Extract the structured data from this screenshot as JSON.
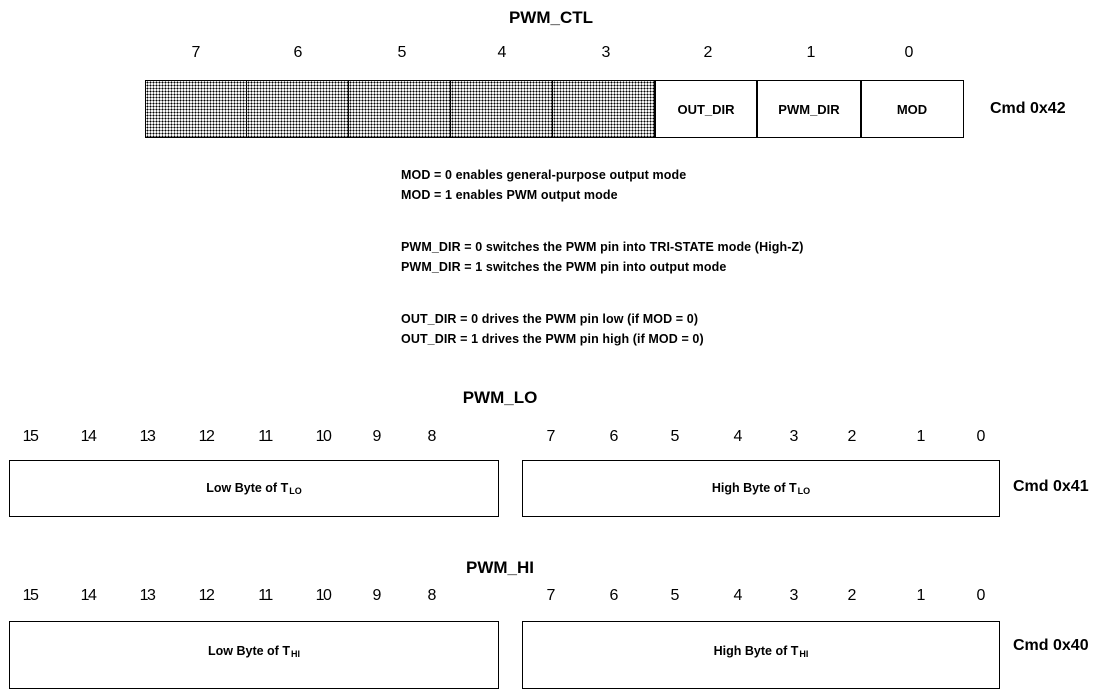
{
  "pwm_ctl": {
    "title": "PWM_CTL",
    "bit_numbers": [
      "7",
      "6",
      "5",
      "4",
      "3",
      "2",
      "1",
      "0"
    ],
    "fields": [
      {
        "label": "",
        "reserved": true
      },
      {
        "label": "",
        "reserved": true
      },
      {
        "label": "",
        "reserved": true
      },
      {
        "label": "",
        "reserved": true
      },
      {
        "label": "",
        "reserved": true
      },
      {
        "label": "OUT_DIR",
        "reserved": false
      },
      {
        "label": "PWM_DIR",
        "reserved": false
      },
      {
        "label": "MOD",
        "reserved": false
      }
    ],
    "cmd": "Cmd 0x42"
  },
  "notes": {
    "mod_0": "MOD = 0 enables general-purpose output mode",
    "mod_1": "MOD = 1 enables PWM output mode",
    "pwm_dir_0": "PWM_DIR = 0 switches the PWM pin into TRI-STATE mode (High-Z)",
    "pwm_dir_1": "PWM_DIR = 1 switches the PWM pin into output mode",
    "out_dir_0": "OUT_DIR = 0 drives the PWM pin low (if MOD = 0)",
    "out_dir_1": "OUT_DIR = 1 drives the PWM pin high (if MOD = 0)"
  },
  "pwm_lo": {
    "title": "PWM_LO",
    "bit_numbers": [
      "15",
      "14",
      "13",
      "12",
      "11",
      "10",
      "9",
      "8",
      "7",
      "6",
      "5",
      "4",
      "3",
      "2",
      "1",
      "0"
    ],
    "low_byte": {
      "label": "Low Byte of T",
      "sub": "LO"
    },
    "high_byte": {
      "label": "High Byte of T",
      "sub": "LO"
    },
    "cmd": "Cmd 0x41"
  },
  "pwm_hi": {
    "title": "PWM_HI",
    "bit_numbers": [
      "15",
      "14",
      "13",
      "12",
      "11",
      "10",
      "9",
      "8",
      "7",
      "6",
      "5",
      "4",
      "3",
      "2",
      "1",
      "0"
    ],
    "low_byte": {
      "label": "Low Byte of T",
      "sub": "HI"
    },
    "high_byte": {
      "label": "High Byte of T",
      "sub": "HI"
    },
    "cmd": "Cmd 0x40"
  }
}
